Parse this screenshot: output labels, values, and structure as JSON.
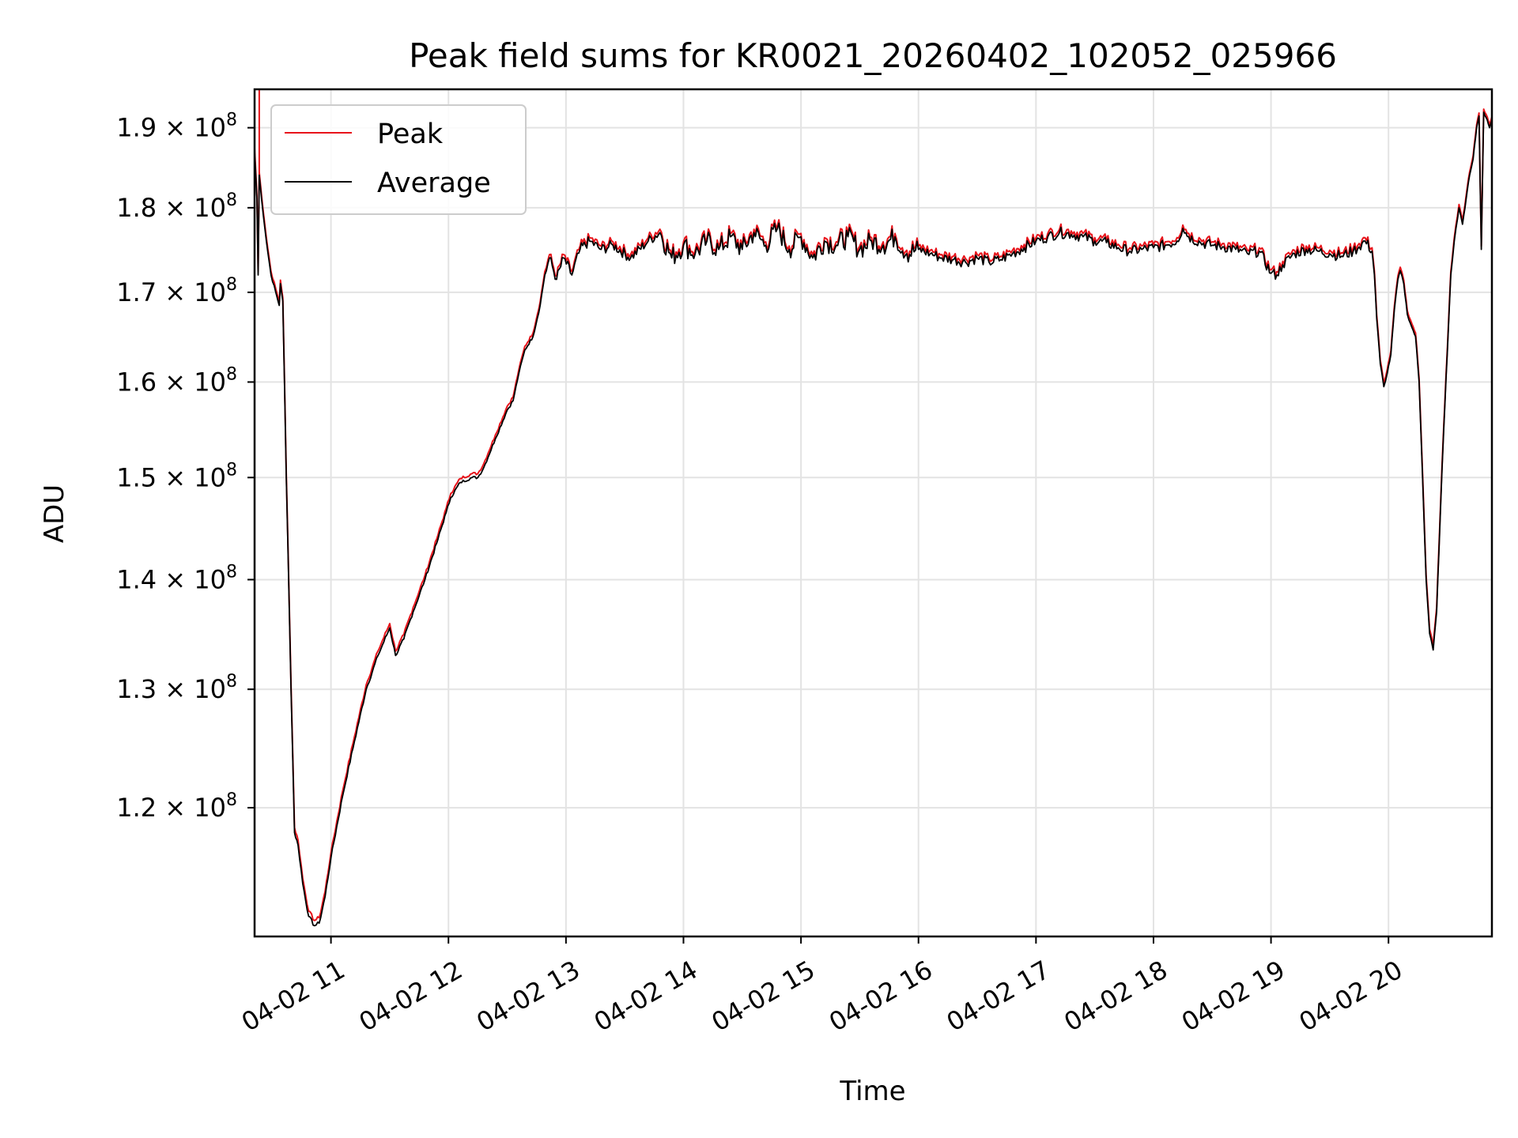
{
  "chart_data": {
    "type": "line",
    "title": "Peak field sums for KR0021_20260402_102052_025966",
    "xlabel": "Time",
    "ylabel": "ADU",
    "x_unit": "hours since 04-02 00:00",
    "xlim": [
      10.35,
      20.88
    ],
    "ylim": [
      110000000,
      195000000
    ],
    "y_scale": "log",
    "grid": true,
    "legend_position": "upper-left",
    "x_ticks": [
      {
        "value": 11,
        "label": "04-02 11"
      },
      {
        "value": 12,
        "label": "04-02 12"
      },
      {
        "value": 13,
        "label": "04-02 13"
      },
      {
        "value": 14,
        "label": "04-02 14"
      },
      {
        "value": 15,
        "label": "04-02 15"
      },
      {
        "value": 16,
        "label": "04-02 16"
      },
      {
        "value": 17,
        "label": "04-02 17"
      },
      {
        "value": 18,
        "label": "04-02 18"
      },
      {
        "value": 19,
        "label": "04-02 19"
      },
      {
        "value": 20,
        "label": "04-02 20"
      }
    ],
    "y_ticks": [
      {
        "value": 120000000,
        "mantissa": "1.2",
        "base": "10",
        "exp": "8"
      },
      {
        "value": 130000000,
        "mantissa": "1.3",
        "base": "10",
        "exp": "8"
      },
      {
        "value": 140000000,
        "mantissa": "1.4",
        "base": "10",
        "exp": "8"
      },
      {
        "value": 150000000,
        "mantissa": "1.5",
        "base": "10",
        "exp": "8"
      },
      {
        "value": 160000000,
        "mantissa": "1.6",
        "base": "10",
        "exp": "8"
      },
      {
        "value": 170000000,
        "mantissa": "1.7",
        "base": "10",
        "exp": "8"
      },
      {
        "value": 180000000,
        "mantissa": "1.8",
        "base": "10",
        "exp": "8"
      },
      {
        "value": 190000000,
        "mantissa": "1.9",
        "base": "10",
        "exp": "8"
      }
    ],
    "series": [
      {
        "name": "Peak",
        "color": "#e8141b",
        "spike": {
          "x": 10.39,
          "y": 195000000
        },
        "offset": 400000
      },
      {
        "name": "Average",
        "color": "#000000",
        "points": [
          [
            10.35,
            187000000
          ],
          [
            10.37,
            181000000
          ],
          [
            10.38,
            172000000
          ],
          [
            10.39,
            184000000
          ],
          [
            10.41,
            181000000
          ],
          [
            10.45,
            176000000
          ],
          [
            10.49,
            172000000
          ],
          [
            10.53,
            170000000
          ],
          [
            10.56,
            168500000
          ],
          [
            10.57,
            171000000
          ],
          [
            10.59,
            169000000
          ],
          [
            10.62,
            150000000
          ],
          [
            10.66,
            130000000
          ],
          [
            10.69,
            118000000
          ],
          [
            10.72,
            117000000
          ],
          [
            10.76,
            114000000
          ],
          [
            10.81,
            111500000
          ],
          [
            10.86,
            110800000
          ],
          [
            10.9,
            111000000
          ],
          [
            10.95,
            113000000
          ],
          [
            11.0,
            116000000
          ],
          [
            11.1,
            121000000
          ],
          [
            11.2,
            125500000
          ],
          [
            11.3,
            130000000
          ],
          [
            11.4,
            133000000
          ],
          [
            11.5,
            135500000
          ],
          [
            11.55,
            133000000
          ],
          [
            11.62,
            134500000
          ],
          [
            11.7,
            137000000
          ],
          [
            11.8,
            140000000
          ],
          [
            11.9,
            143500000
          ],
          [
            11.98,
            146500000
          ],
          [
            12.02,
            148000000
          ],
          [
            12.1,
            149500000
          ],
          [
            12.2,
            150000000
          ],
          [
            12.25,
            150000000
          ],
          [
            12.3,
            151000000
          ],
          [
            12.4,
            154000000
          ],
          [
            12.5,
            157000000
          ],
          [
            12.55,
            158000000
          ],
          [
            12.6,
            161000000
          ],
          [
            12.65,
            163500000
          ],
          [
            12.72,
            165000000
          ],
          [
            12.78,
            168500000
          ],
          [
            12.82,
            172000000
          ],
          [
            12.86,
            174000000
          ],
          [
            12.92,
            171500000
          ],
          [
            12.98,
            174000000
          ],
          [
            13.05,
            172000000
          ],
          [
            13.12,
            175000000
          ],
          [
            13.2,
            176000000
          ],
          [
            13.3,
            175000000
          ],
          [
            13.4,
            175500000
          ],
          [
            13.55,
            174000000
          ],
          [
            13.7,
            176000000
          ],
          [
            13.8,
            177000000
          ],
          [
            13.9,
            174000000
          ],
          [
            14.0,
            175500000
          ],
          [
            14.1,
            174500000
          ],
          [
            14.2,
            176000000
          ],
          [
            14.3,
            175000000
          ],
          [
            14.4,
            176500000
          ],
          [
            14.5,
            175000000
          ],
          [
            14.6,
            177000000
          ],
          [
            14.7,
            175500000
          ],
          [
            14.8,
            177500000
          ],
          [
            14.9,
            175000000
          ],
          [
            15.0,
            176500000
          ],
          [
            15.1,
            174000000
          ],
          [
            15.2,
            176000000
          ],
          [
            15.3,
            175500000
          ],
          [
            15.4,
            176500000
          ],
          [
            15.5,
            175000000
          ],
          [
            15.6,
            176000000
          ],
          [
            15.7,
            175500000
          ],
          [
            15.8,
            176500000
          ],
          [
            15.9,
            174500000
          ],
          [
            16.0,
            175000000
          ],
          [
            16.1,
            174500000
          ],
          [
            16.2,
            174000000
          ],
          [
            16.3,
            173800000
          ],
          [
            16.4,
            173500000
          ],
          [
            16.5,
            174000000
          ],
          [
            16.6,
            173500000
          ],
          [
            16.7,
            173800000
          ],
          [
            16.8,
            174500000
          ],
          [
            16.9,
            175200000
          ],
          [
            17.0,
            176000000
          ],
          [
            17.1,
            176500000
          ],
          [
            17.2,
            177000000
          ],
          [
            17.3,
            176800000
          ],
          [
            17.4,
            176500000
          ],
          [
            17.5,
            176000000
          ],
          [
            17.6,
            175800000
          ],
          [
            17.7,
            175200000
          ],
          [
            17.8,
            174800000
          ],
          [
            17.9,
            175000000
          ],
          [
            18.0,
            175200000
          ],
          [
            18.1,
            175500000
          ],
          [
            18.2,
            176000000
          ],
          [
            18.25,
            177500000
          ],
          [
            18.3,
            176500000
          ],
          [
            18.4,
            175800000
          ],
          [
            18.5,
            175500000
          ],
          [
            18.6,
            175300000
          ],
          [
            18.7,
            175000000
          ],
          [
            18.8,
            174500000
          ],
          [
            18.9,
            174800000
          ],
          [
            19.0,
            172200000
          ],
          [
            19.05,
            172000000
          ],
          [
            19.1,
            173200000
          ],
          [
            19.2,
            174500000
          ],
          [
            19.3,
            175000000
          ],
          [
            19.4,
            174800000
          ],
          [
            19.5,
            174500000
          ],
          [
            19.6,
            174200000
          ],
          [
            19.7,
            174800000
          ],
          [
            19.75,
            175300000
          ],
          [
            19.8,
            176000000
          ],
          [
            19.86,
            174800000
          ],
          [
            19.88,
            172000000
          ],
          [
            19.9,
            167000000
          ],
          [
            19.93,
            162000000
          ],
          [
            19.96,
            159500000
          ],
          [
            19.99,
            161000000
          ],
          [
            20.02,
            163000000
          ],
          [
            20.05,
            168000000
          ],
          [
            20.08,
            171500000
          ],
          [
            20.1,
            172500000
          ],
          [
            20.13,
            171000000
          ],
          [
            20.16,
            167500000
          ],
          [
            20.2,
            166000000
          ],
          [
            20.23,
            165000000
          ],
          [
            20.26,
            160000000
          ],
          [
            20.29,
            150000000
          ],
          [
            20.32,
            140000000
          ],
          [
            20.35,
            135000000
          ],
          [
            20.38,
            133500000
          ],
          [
            20.41,
            137000000
          ],
          [
            20.44,
            146000000
          ],
          [
            20.47,
            155000000
          ],
          [
            20.5,
            163000000
          ],
          [
            20.53,
            172000000
          ],
          [
            20.56,
            176000000
          ],
          [
            20.6,
            180000000
          ],
          [
            20.63,
            178000000
          ],
          [
            20.66,
            181000000
          ],
          [
            20.69,
            184000000
          ],
          [
            20.72,
            186000000
          ],
          [
            20.75,
            190000000
          ],
          [
            20.77,
            191500000
          ],
          [
            20.79,
            175000000
          ],
          [
            20.81,
            192000000
          ],
          [
            20.84,
            191000000
          ],
          [
            20.86,
            190000000
          ],
          [
            20.88,
            191000000
          ]
        ]
      }
    ]
  }
}
